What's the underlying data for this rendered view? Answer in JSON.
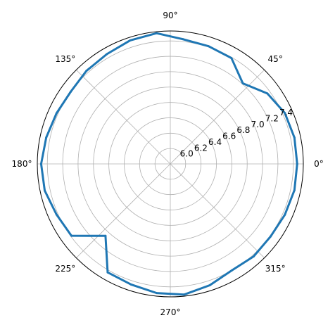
{
  "chart_data": {
    "type": "polar-line",
    "title": "",
    "theta_tick_labels": [
      "0°",
      "45°",
      "90°",
      "135°",
      "180°",
      "225°",
      "270°",
      "315°"
    ],
    "theta_ticks_deg": [
      0,
      45,
      90,
      135,
      180,
      225,
      270,
      315
    ],
    "r_tick_labels": [
      "6.0",
      "6.2",
      "6.4",
      "6.6",
      "6.8",
      "7.0",
      "7.2",
      "7.4"
    ],
    "r_ticks": [
      6.0,
      6.2,
      6.4,
      6.6,
      6.8,
      7.0,
      7.2,
      7.4
    ],
    "r_range": [
      5.8,
      7.53
    ],
    "rlabel_position_deg": 22.5,
    "grid": true,
    "series": [
      {
        "color": "#1f77b4",
        "theta_deg": [
          0,
          12,
          24,
          36,
          48,
          60,
          72,
          84,
          96,
          108,
          120,
          132,
          144,
          156,
          168,
          180,
          192,
          204,
          216,
          228,
          240,
          252,
          264,
          276,
          288,
          300,
          312,
          324,
          336,
          348,
          360
        ],
        "r": [
          7.45,
          7.45,
          7.43,
          7.36,
          7.21,
          7.39,
          7.41,
          7.43,
          7.51,
          7.49,
          7.45,
          7.43,
          7.4,
          7.42,
          7.45,
          7.48,
          7.47,
          7.42,
          7.39,
          7.06,
          7.43,
          7.45,
          7.49,
          7.51,
          7.46,
          7.4,
          7.42,
          7.41,
          7.43,
          7.45,
          7.45
        ]
      }
    ]
  }
}
